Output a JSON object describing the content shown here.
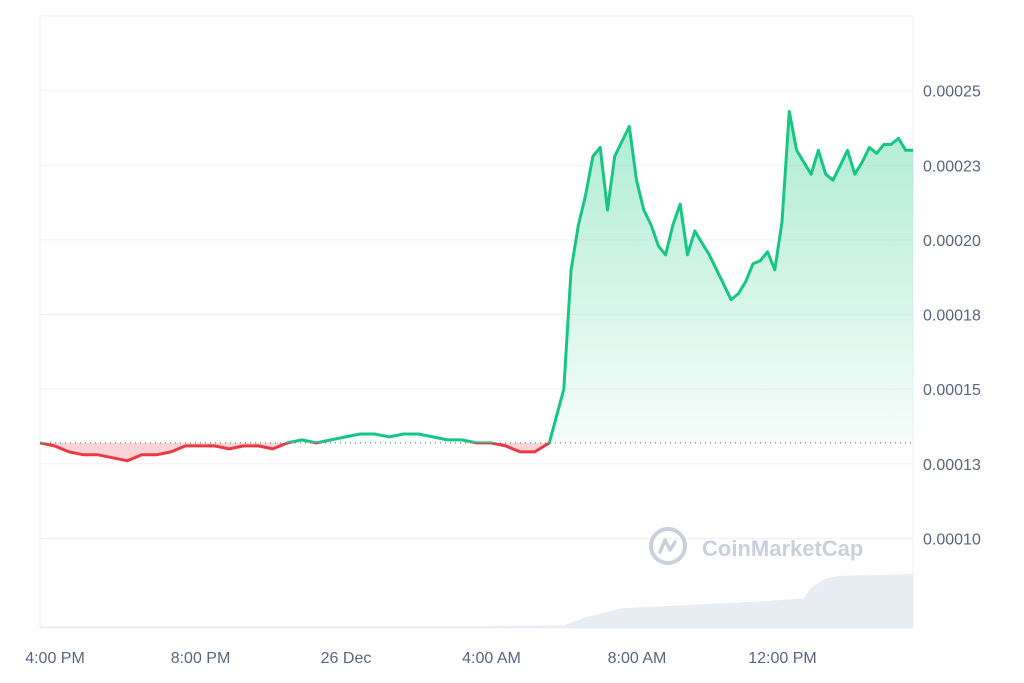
{
  "chart_data": {
    "type": "line",
    "baseline": 0.000132,
    "y_ticks": [
      {
        "label": "0.00025",
        "value": 0.00025
      },
      {
        "label": "0.00023",
        "value": 0.000225
      },
      {
        "label": "0.00020",
        "value": 0.0002
      },
      {
        "label": "0.00018",
        "value": 0.000175
      },
      {
        "label": "0.00015",
        "value": 0.00015
      },
      {
        "label": "0.00013",
        "value": 0.000125
      },
      {
        "label": "0.00010",
        "value": 0.0001
      }
    ],
    "ylim": [
      7e-05,
      0.000275
    ],
    "x_ticks": [
      {
        "label": "4:00 PM",
        "hours": 0
      },
      {
        "label": "8:00 PM",
        "hours": 4
      },
      {
        "label": "26 Dec",
        "hours": 8
      },
      {
        "label": "4:00 AM",
        "hours": 12
      },
      {
        "label": "8:00 AM",
        "hours": 16
      },
      {
        "label": "12:00 PM",
        "hours": 20
      }
    ],
    "xlim_hours": [
      0,
      24
    ],
    "colors": {
      "up": "#16c784",
      "down": "#ea3943",
      "grid": "#eff2f5",
      "volume": "#e6ebf2"
    },
    "series": [
      {
        "hours": [
          0,
          0.4,
          0.8,
          1.2,
          1.6,
          2.0,
          2.4,
          2.8,
          3.2,
          3.6,
          4.0,
          4.4,
          4.8,
          5.2,
          5.6,
          6.0,
          6.4,
          6.8,
          7.2,
          7.6,
          8.0,
          8.4,
          8.8,
          9.2,
          9.6,
          10.0,
          10.4,
          10.8,
          11.2,
          11.6,
          12.0,
          12.4,
          12.8,
          13.2,
          13.6,
          14.0,
          14.4,
          14.6,
          14.8,
          15.0,
          15.2,
          15.4,
          15.6,
          15.8,
          16.0,
          16.2,
          16.4,
          16.6,
          16.8,
          17.0,
          17.2,
          17.4,
          17.6,
          17.8,
          18.0,
          18.2,
          18.4,
          18.6,
          18.8,
          19.0,
          19.2,
          19.4,
          19.6,
          19.8,
          20.0,
          20.2,
          20.4,
          20.6,
          20.8,
          21.0,
          21.2,
          21.4,
          21.6,
          21.8,
          22.0,
          22.2,
          22.4,
          22.6,
          22.8,
          23.0,
          23.2,
          23.4,
          23.6,
          23.8,
          24.0
        ],
        "values": [
          0.000132,
          0.000131,
          0.000129,
          0.000128,
          0.000128,
          0.000127,
          0.000126,
          0.000128,
          0.000128,
          0.000129,
          0.000131,
          0.000131,
          0.000131,
          0.00013,
          0.000131,
          0.000131,
          0.00013,
          0.000132,
          0.000133,
          0.000132,
          0.000133,
          0.000134,
          0.000135,
          0.000135,
          0.000134,
          0.000135,
          0.000135,
          0.000134,
          0.000133,
          0.000133,
          0.000132,
          0.000132,
          0.000131,
          0.000129,
          0.000129,
          0.000132,
          0.00015,
          0.00019,
          0.000205,
          0.000215,
          0.000228,
          0.000231,
          0.00021,
          0.000228,
          0.000233,
          0.000238,
          0.00022,
          0.00021,
          0.000205,
          0.000198,
          0.000195,
          0.000205,
          0.000212,
          0.000195,
          0.000203,
          0.000199,
          0.000195,
          0.00019,
          0.000185,
          0.00018,
          0.000182,
          0.000186,
          0.000192,
          0.000193,
          0.000196,
          0.00019,
          0.000206,
          0.000243,
          0.00023,
          0.000226,
          0.000222,
          0.00023,
          0.000222,
          0.00022,
          0.000225,
          0.00023,
          0.000222,
          0.000226,
          0.000231,
          0.000229,
          0.000232,
          0.000232,
          0.000234,
          0.00023,
          0.00023
        ]
      }
    ],
    "volume": {
      "hours": [
        0,
        12,
        14.4,
        15.0,
        16.0,
        18.0,
        20.0,
        21.0,
        21.2,
        21.6,
        22.0,
        24.0
      ],
      "values": [
        2,
        2,
        3,
        12,
        22,
        26,
        30,
        33,
        45,
        55,
        58,
        60
      ]
    }
  },
  "watermark": {
    "text": "CoinMarketCap",
    "icon": "coinmarketcap-logo-icon"
  }
}
